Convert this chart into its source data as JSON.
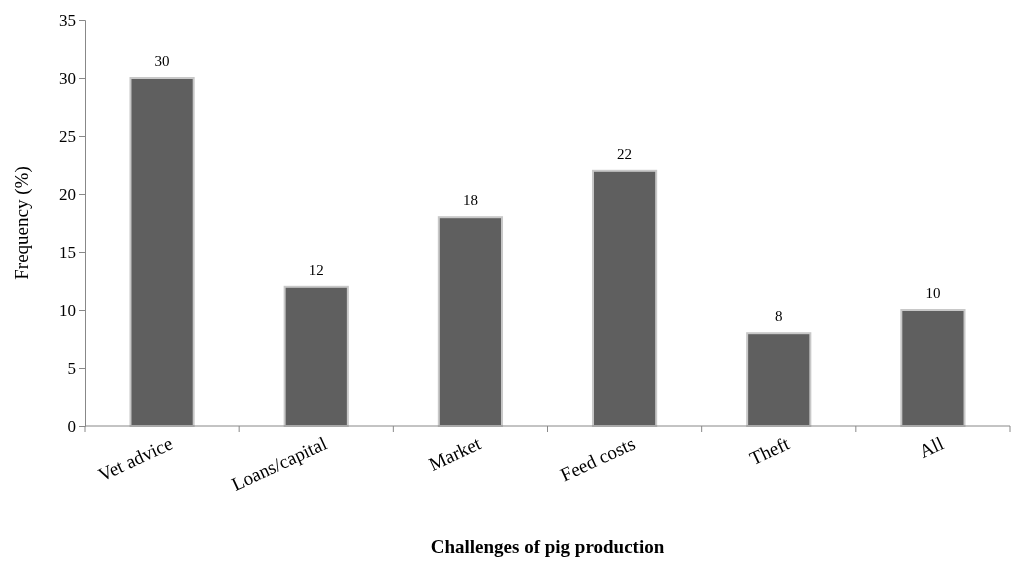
{
  "chart_data": {
    "type": "bar",
    "xlabel": "Challenges of pig production",
    "ylabel": "Frequency (%)",
    "categories": [
      "Vet advice",
      "Loans/capital",
      "Market",
      "Feed costs",
      "Theft",
      "All"
    ],
    "values": [
      30,
      12,
      18,
      22,
      8,
      10
    ],
    "color": "#5f5f5f",
    "ylim": [
      0,
      35
    ],
    "yticks": [
      0,
      5,
      10,
      15,
      20,
      25,
      30,
      35
    ],
    "grid": false,
    "data_labels": true
  }
}
